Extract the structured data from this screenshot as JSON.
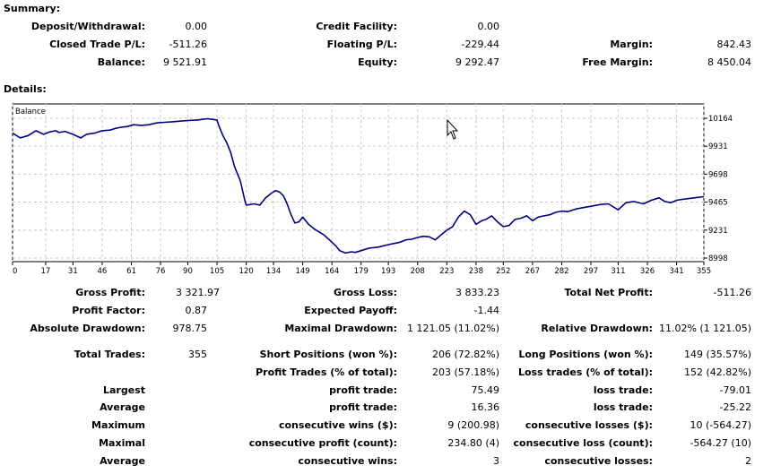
{
  "summary": {
    "heading": "Summary:",
    "rows": [
      [
        {
          "label": "Deposit/Withdrawal:",
          "value": "0.00"
        },
        {
          "label": "Credit Facility:",
          "value": "0.00"
        },
        {
          "label": "",
          "value": ""
        }
      ],
      [
        {
          "label": "Closed Trade P/L:",
          "value": "-511.26"
        },
        {
          "label": "Floating P/L:",
          "value": "-229.44"
        },
        {
          "label": "Margin:",
          "value": "842.43"
        }
      ],
      [
        {
          "label": "Balance:",
          "value": "9 521.91"
        },
        {
          "label": "Equity:",
          "value": "9 292.47"
        },
        {
          "label": "Free Margin:",
          "value": "8 450.04"
        }
      ]
    ]
  },
  "details": {
    "heading": "Details:"
  },
  "chart_data": {
    "type": "line",
    "title": "Balance",
    "x_ticks": [
      "0",
      "17",
      "31",
      "46",
      "61",
      "76",
      "90",
      "105",
      "120",
      "134",
      "149",
      "164",
      "179",
      "193",
      "208",
      "223",
      "238",
      "252",
      "267",
      "282",
      "297",
      "311",
      "326",
      "341",
      "355"
    ],
    "y_ticks": [
      "10164",
      "9931",
      "9698",
      "9465",
      "9231",
      "8998"
    ],
    "ylim": [
      8998,
      10164
    ],
    "xlim": [
      0,
      355
    ],
    "grid": true,
    "line_color": "#000080",
    "series": [
      {
        "x": [
          0,
          4,
          8,
          12,
          16,
          19,
          22,
          24,
          27,
          31,
          35,
          38,
          42,
          46,
          50,
          53,
          56,
          59,
          62,
          66,
          70,
          74,
          78,
          82,
          86,
          90,
          95,
          100,
          105,
          106,
          108,
          110,
          112,
          114,
          117,
          119,
          120,
          124,
          127,
          130,
          133,
          135,
          137,
          139,
          141,
          143,
          145,
          147,
          149,
          152,
          155,
          158,
          160,
          162,
          164,
          166,
          168,
          171,
          174,
          176,
          179,
          183,
          188,
          193,
          196,
          199,
          202,
          205,
          208,
          211,
          214,
          217,
          220,
          223,
          226,
          229,
          232,
          235,
          238,
          241,
          243,
          246,
          249,
          252,
          255,
          258,
          261,
          264,
          267,
          270,
          273,
          276,
          279,
          282,
          285,
          290,
          297,
          302,
          306,
          311,
          315,
          319,
          324,
          328,
          332,
          335,
          338,
          341,
          345,
          350,
          355
        ],
        "values": [
          10040,
          10000,
          10020,
          10060,
          10030,
          10050,
          10060,
          10045,
          10055,
          10030,
          10000,
          10030,
          10040,
          10060,
          10065,
          10080,
          10090,
          10095,
          10110,
          10105,
          10110,
          10125,
          10130,
          10135,
          10140,
          10145,
          10150,
          10160,
          10150,
          10100,
          10020,
          9960,
          9880,
          9760,
          9640,
          9500,
          9440,
          9450,
          9440,
          9500,
          9540,
          9560,
          9550,
          9520,
          9450,
          9360,
          9290,
          9300,
          9340,
          9280,
          9240,
          9210,
          9190,
          9160,
          9130,
          9100,
          9060,
          9040,
          9050,
          9045,
          9060,
          9080,
          9090,
          9110,
          9120,
          9130,
          9150,
          9155,
          9170,
          9180,
          9175,
          9150,
          9190,
          9230,
          9260,
          9340,
          9390,
          9360,
          9280,
          9310,
          9320,
          9350,
          9300,
          9260,
          9270,
          9320,
          9330,
          9350,
          9310,
          9340,
          9350,
          9360,
          9380,
          9390,
          9385,
          9410,
          9430,
          9445,
          9450,
          9400,
          9460,
          9470,
          9450,
          9480,
          9500,
          9470,
          9460,
          9480,
          9490,
          9500,
          9510
        ]
      }
    ]
  },
  "stats": {
    "row1": [
      {
        "label": "Gross Profit:",
        "value": "3 321.97"
      },
      {
        "label": "Gross Loss:",
        "value": "3 833.23"
      },
      {
        "label": "Total Net Profit:",
        "value": "-511.26"
      }
    ],
    "row2": [
      {
        "label": "Profit Factor:",
        "value": "0.87"
      },
      {
        "label": "Expected Payoff:",
        "value": "-1.44"
      }
    ],
    "row3": [
      {
        "label": "Absolute Drawdown:",
        "value": "978.75"
      },
      {
        "label": "Maximal Drawdown:",
        "value": "1 121.05 (11.02%)"
      },
      {
        "label": "Relative Drawdown:",
        "value": "11.02% (1 121.05)"
      }
    ],
    "total_trades": {
      "label": "Total Trades:",
      "value": "355"
    },
    "short_positions": {
      "label": "Short Positions (won %):",
      "value": "206 (72.82%)"
    },
    "long_positions": {
      "label": "Long Positions (won %):",
      "value": "149 (35.57%)"
    },
    "profit_trades": {
      "label": "Profit Trades (% of total):",
      "value": "203 (57.18%)"
    },
    "loss_trades": {
      "label": "Loss trades (% of total):",
      "value": "152 (42.82%)"
    },
    "groups": [
      {
        "name": "Largest",
        "l1": "profit trade:",
        "v1": "75.49",
        "l2": "loss trade:",
        "v2": "-79.01"
      },
      {
        "name": "Average",
        "l1": "profit trade:",
        "v1": "16.36",
        "l2": "loss trade:",
        "v2": "-25.22"
      },
      {
        "name": "Maximum",
        "l1": "consecutive wins ($):",
        "v1": "9 (200.98)",
        "l2": "consecutive losses ($):",
        "v2": "10 (-564.27)"
      },
      {
        "name": "Maximal",
        "l1": "consecutive profit (count):",
        "v1": "234.80 (4)",
        "l2": "consecutive loss (count):",
        "v2": "-564.27 (10)"
      },
      {
        "name": "Average",
        "l1": "consecutive wins:",
        "v1": "3",
        "l2": "consecutive losses:",
        "v2": "2"
      }
    ]
  }
}
